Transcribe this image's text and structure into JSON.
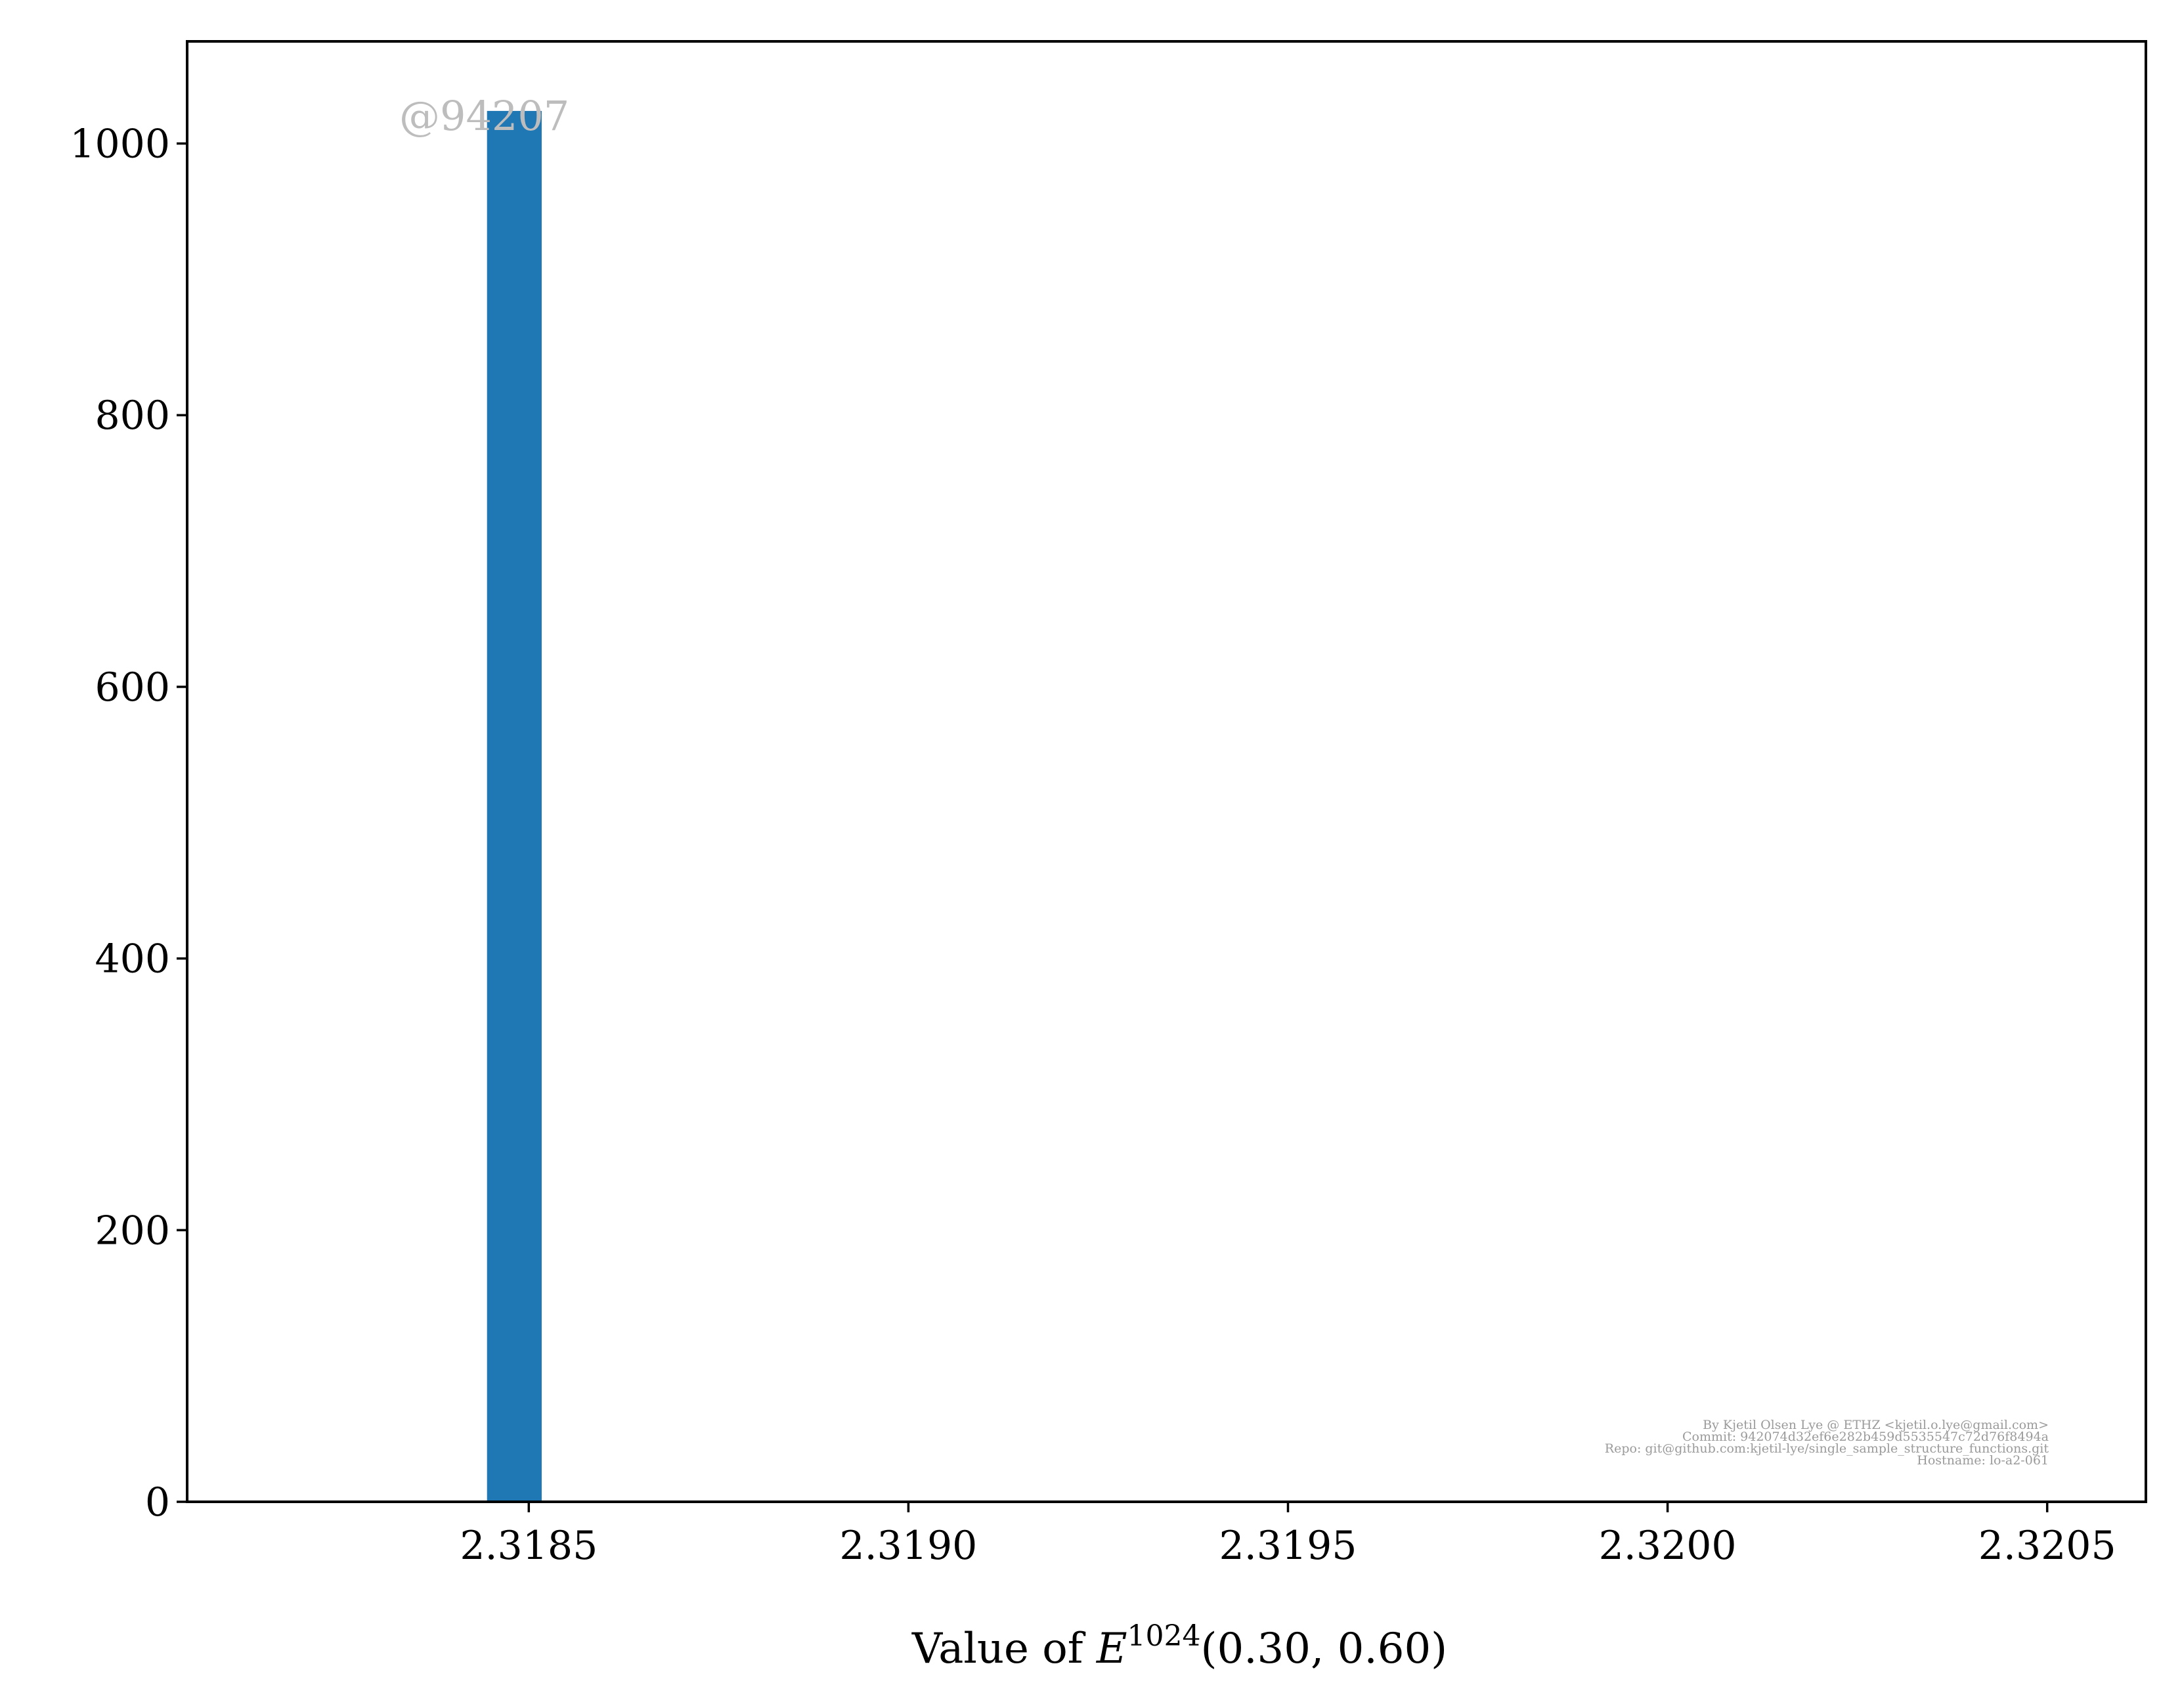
{
  "chart_data": {
    "type": "bar",
    "title": "",
    "xlabel": "Value of E^1024(0.30, 0.60)",
    "xlabel_parts": {
      "prefix": "Value of ",
      "symbol": "E",
      "superscript": "1024",
      "args": "(0.30, 0.60)"
    },
    "ylabel": "",
    "xlim": [
      2.31805,
      2.32063
    ],
    "ylim": [
      0,
      1075.2
    ],
    "x_ticks": [
      {
        "value": 2.3185,
        "label": "2.3185"
      },
      {
        "value": 2.319,
        "label": "2.3190"
      },
      {
        "value": 2.3195,
        "label": "2.3195"
      },
      {
        "value": 2.32,
        "label": "2.3200"
      },
      {
        "value": 2.3205,
        "label": "2.3205"
      }
    ],
    "y_ticks": [
      {
        "value": 0,
        "label": "0"
      },
      {
        "value": 200,
        "label": "200"
      },
      {
        "value": 400,
        "label": "400"
      },
      {
        "value": 600,
        "label": "600"
      },
      {
        "value": 800,
        "label": "800"
      },
      {
        "value": 1000,
        "label": "1000"
      }
    ],
    "bars": [
      {
        "x_start": 2.318445,
        "x_end": 2.318517,
        "count": 1024
      }
    ],
    "grid": false,
    "bar_color": "#1f77b4",
    "annotations": {
      "watermark": "@94207",
      "footer_lines": [
        "By Kjetil Olsen Lye @ ETHZ <kjetil.o.lye@gmail.com>",
        "Commit: 942074d32ef6e282b459d5535547c72d76f8494a",
        "Repo: git@github.com:kjetil-lye/single_sample_structure_functions.git",
        "Hostname: lo-a2-061"
      ]
    }
  }
}
